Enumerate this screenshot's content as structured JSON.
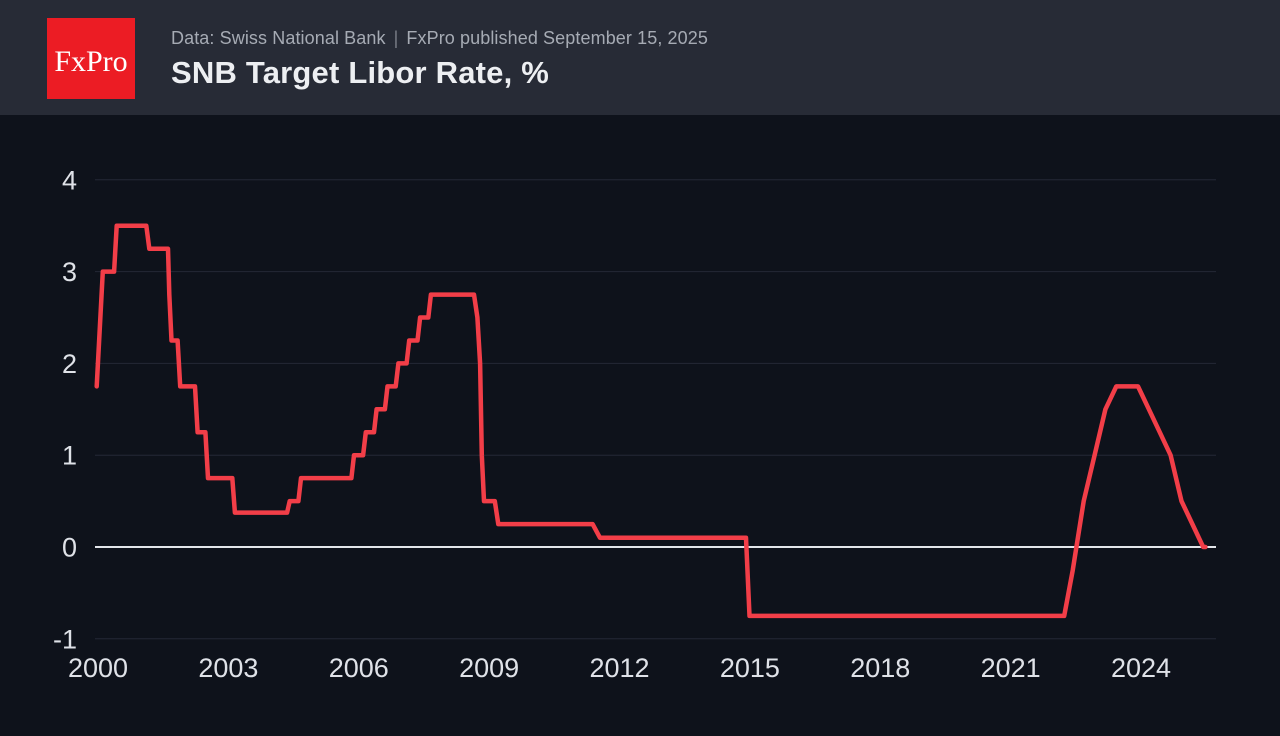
{
  "header": {
    "logo_text": "FxPro",
    "source_line": "Data: Swiss National Bank",
    "separator": "|",
    "published_line": "FxPro published September 15, 2025",
    "title": "SNB Target Libor Rate, %"
  },
  "colors": {
    "header_bg": "#272b36",
    "chart_bg": "#0e121b",
    "logo_bg": "#ec1c24",
    "logo_text": "#ffffff",
    "title_text": "#edeff2",
    "subtitle_text": "#a6abb4",
    "separator": "#787d86",
    "axis_text": "#dfe2e8",
    "grid_line": "#242836",
    "zero_line": "#e2e5ea",
    "series_line": "#f23e48"
  },
  "chart_data": {
    "type": "line",
    "title": "SNB Target Libor Rate, %",
    "source": "Data: Swiss National Bank",
    "published": "FxPro published September 15, 2025",
    "xlabel": "",
    "ylabel": "",
    "x_ticks": [
      2000,
      2003,
      2006,
      2009,
      2012,
      2015,
      2018,
      2021,
      2024
    ],
    "y_ticks": [
      4,
      3,
      2,
      1,
      0,
      -1
    ],
    "xlim": [
      1999.9,
      2027.9
    ],
    "ylim": [
      -2.0,
      4.7
    ],
    "grid": "horizontal-only",
    "legend": "none",
    "series": [
      {
        "name": "SNB Target Libor Rate, %",
        "points": [
          [
            2000.04,
            1.75
          ],
          [
            2000.18,
            3.0
          ],
          [
            2000.44,
            3.0
          ],
          [
            2000.5,
            3.5
          ],
          [
            2001.18,
            3.5
          ],
          [
            2001.25,
            3.25
          ],
          [
            2001.68,
            3.25
          ],
          [
            2001.71,
            2.75
          ],
          [
            2001.76,
            2.25
          ],
          [
            2001.9,
            2.25
          ],
          [
            2001.96,
            1.75
          ],
          [
            2002.3,
            1.75
          ],
          [
            2002.36,
            1.25
          ],
          [
            2002.54,
            1.25
          ],
          [
            2002.6,
            0.75
          ],
          [
            2003.16,
            0.75
          ],
          [
            2003.22,
            0.375
          ],
          [
            2004.42,
            0.375
          ],
          [
            2004.48,
            0.5
          ],
          [
            2004.68,
            0.5
          ],
          [
            2004.74,
            0.75
          ],
          [
            2005.9,
            0.75
          ],
          [
            2005.96,
            1.0
          ],
          [
            2006.17,
            1.0
          ],
          [
            2006.23,
            1.25
          ],
          [
            2006.42,
            1.25
          ],
          [
            2006.48,
            1.5
          ],
          [
            2006.67,
            1.5
          ],
          [
            2006.73,
            1.75
          ],
          [
            2006.92,
            1.75
          ],
          [
            2006.98,
            2.0
          ],
          [
            2007.17,
            2.0
          ],
          [
            2007.23,
            2.25
          ],
          [
            2007.42,
            2.25
          ],
          [
            2007.48,
            2.5
          ],
          [
            2007.67,
            2.5
          ],
          [
            2007.73,
            2.75
          ],
          [
            2008.72,
            2.75
          ],
          [
            2008.8,
            2.5
          ],
          [
            2008.86,
            2.0
          ],
          [
            2008.9,
            1.0
          ],
          [
            2008.95,
            0.5
          ],
          [
            2009.2,
            0.5
          ],
          [
            2009.28,
            0.25
          ],
          [
            2011.45,
            0.25
          ],
          [
            2011.62,
            0.1
          ],
          [
            2014.98,
            0.1
          ],
          [
            2015.06,
            -0.75
          ],
          [
            2022.3,
            -0.75
          ],
          [
            2022.5,
            -0.25
          ],
          [
            2022.75,
            0.5
          ],
          [
            2023.0,
            1.0
          ],
          [
            2023.25,
            1.5
          ],
          [
            2023.5,
            1.75
          ],
          [
            2024.0,
            1.75
          ],
          [
            2024.25,
            1.5
          ],
          [
            2024.5,
            1.25
          ],
          [
            2024.75,
            1.0
          ],
          [
            2025.0,
            0.5
          ],
          [
            2025.25,
            0.25
          ],
          [
            2025.5,
            0.0
          ],
          [
            2025.55,
            0.0
          ]
        ]
      }
    ]
  }
}
